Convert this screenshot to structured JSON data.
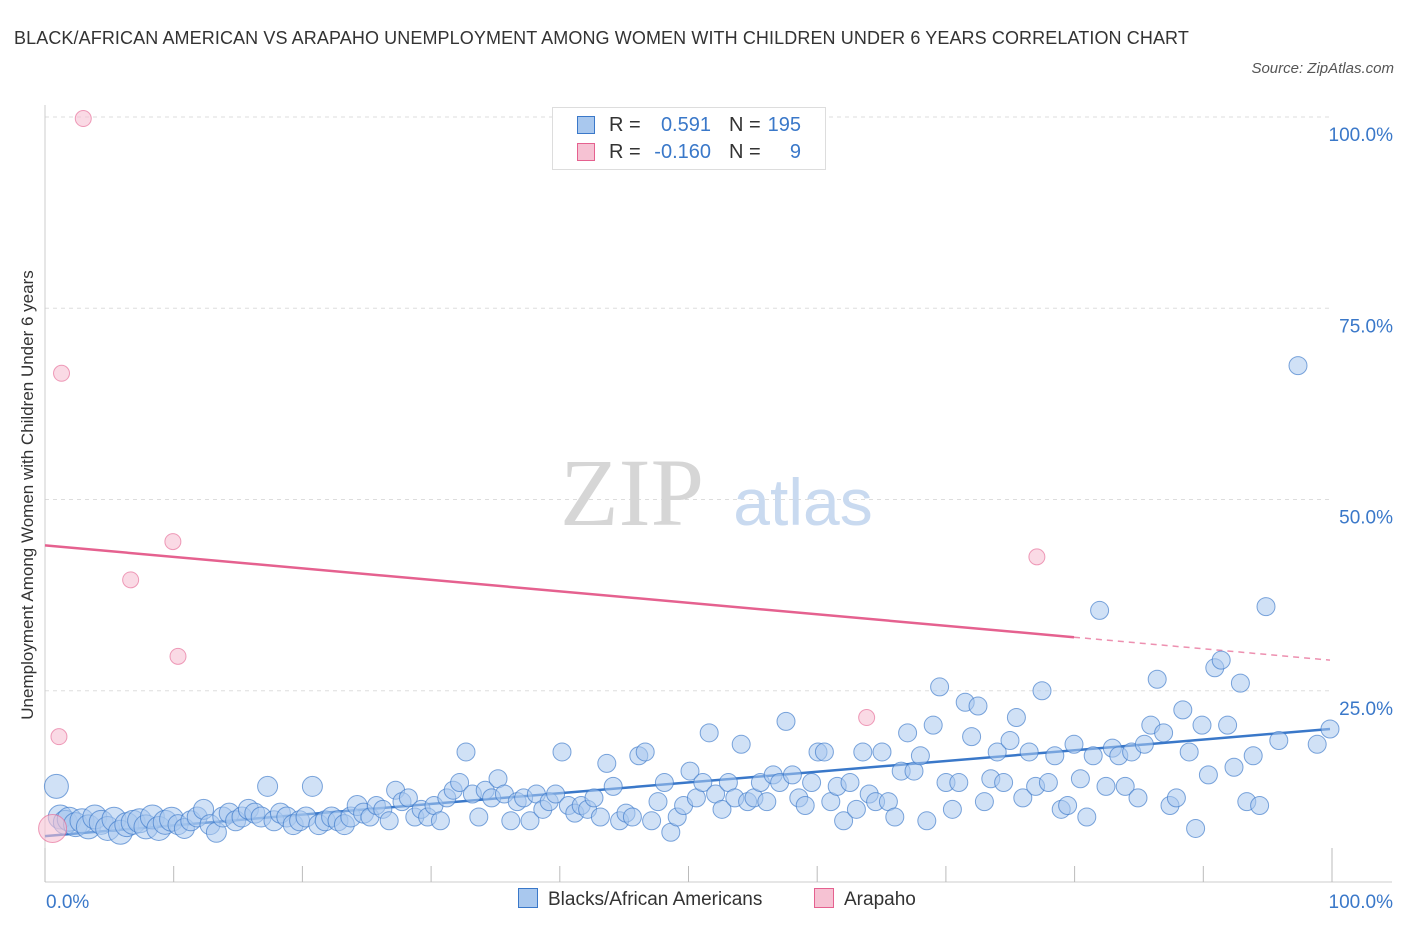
{
  "title": "BLACK/AFRICAN AMERICAN VS ARAPAHO UNEMPLOYMENT AMONG WOMEN WITH CHILDREN UNDER 6 YEARS CORRELATION CHART",
  "source": "Source: ZipAtlas.com",
  "watermark": {
    "zip": "ZIP",
    "atlas": "atlas"
  },
  "stats": {
    "blue": {
      "r_label": "R =",
      "r_value": "0.591",
      "n_label": "N =",
      "n_value": "195"
    },
    "pink": {
      "r_label": "R =",
      "r_value": "-0.160",
      "n_label": "N =",
      "n_value": "9"
    }
  },
  "legend": {
    "blue_label": "Blacks/African Americans",
    "pink_label": "Arapaho"
  },
  "colors": {
    "blue": "#3a78c9",
    "blue_fill": "#a9c8ee",
    "pink": "#e5618f",
    "pink_fill": "#f6c2d3",
    "grid": "#dddddd"
  },
  "chart_data": {
    "type": "scatter",
    "title": "BLACK/AFRICAN AMERICAN VS ARAPAHO UNEMPLOYMENT AMONG WOMEN WITH CHILDREN UNDER 6 YEARS CORRELATION CHART",
    "xlabel": "",
    "ylabel": "Unemployment Among Women with Children Under 6 years",
    "xlim": [
      0,
      100
    ],
    "ylim": [
      0,
      100
    ],
    "x_tick_labels": [
      "0.0%",
      "100.0%"
    ],
    "y_tick_labels": [
      "100.0%",
      "75.0%",
      "50.0%",
      "25.0%"
    ],
    "y_ticks": [
      100,
      75,
      50,
      25
    ],
    "grid": true,
    "series": [
      {
        "name": "Blacks/African Americans",
        "color": "#3a78c9",
        "r": 0.591,
        "n": 195,
        "trend": {
          "x0": 0,
          "y0": 6.0,
          "x1": 100,
          "y1": 20.0
        },
        "points": [
          [
            0.5,
            12.5
          ],
          [
            0.8,
            8.5
          ],
          [
            1.2,
            7.8
          ],
          [
            1.5,
            8.2
          ],
          [
            2.0,
            7.5
          ],
          [
            2.5,
            8.0
          ],
          [
            3.0,
            7.2
          ],
          [
            3.5,
            8.5
          ],
          [
            4.0,
            7.8
          ],
          [
            4.5,
            7.0
          ],
          [
            5.0,
            8.2
          ],
          [
            5.5,
            6.5
          ],
          [
            6.0,
            7.5
          ],
          [
            6.5,
            7.8
          ],
          [
            7.0,
            8.0
          ],
          [
            7.5,
            7.2
          ],
          [
            8.0,
            8.5
          ],
          [
            8.5,
            7.0
          ],
          [
            9.0,
            7.8
          ],
          [
            9.5,
            8.2
          ],
          [
            10.0,
            7.5
          ],
          [
            10.5,
            7.0
          ],
          [
            11.0,
            8.0
          ],
          [
            11.5,
            8.5
          ],
          [
            12.0,
            9.5
          ],
          [
            12.5,
            7.5
          ],
          [
            13.0,
            6.5
          ],
          [
            13.5,
            8.5
          ],
          [
            14.0,
            9.0
          ],
          [
            14.5,
            8.0
          ],
          [
            15.0,
            8.5
          ],
          [
            15.5,
            9.5
          ],
          [
            16.0,
            9.0
          ],
          [
            16.5,
            8.5
          ],
          [
            17.0,
            12.5
          ],
          [
            17.5,
            8.0
          ],
          [
            18.0,
            9.0
          ],
          [
            18.5,
            8.5
          ],
          [
            19.0,
            7.5
          ],
          [
            19.5,
            8.0
          ],
          [
            20.0,
            8.5
          ],
          [
            20.5,
            12.5
          ],
          [
            21.0,
            7.5
          ],
          [
            21.5,
            8.0
          ],
          [
            22.0,
            8.5
          ],
          [
            22.5,
            8.0
          ],
          [
            23.0,
            7.5
          ],
          [
            23.5,
            8.5
          ],
          [
            24.0,
            10.0
          ],
          [
            24.5,
            9.0
          ],
          [
            25.0,
            8.5
          ],
          [
            25.5,
            10.0
          ],
          [
            26.0,
            9.5
          ],
          [
            26.5,
            8.0
          ],
          [
            27.0,
            12.0
          ],
          [
            27.5,
            10.5
          ],
          [
            28.0,
            11.0
          ],
          [
            28.5,
            8.5
          ],
          [
            29.0,
            9.5
          ],
          [
            29.5,
            8.5
          ],
          [
            30.0,
            10.0
          ],
          [
            30.5,
            8.0
          ],
          [
            31.0,
            11.0
          ],
          [
            31.5,
            12.0
          ],
          [
            32.0,
            13.0
          ],
          [
            32.5,
            17.0
          ],
          [
            33.0,
            11.5
          ],
          [
            33.5,
            8.5
          ],
          [
            34.0,
            12.0
          ],
          [
            34.5,
            11.0
          ],
          [
            35.0,
            13.5
          ],
          [
            35.5,
            11.5
          ],
          [
            36.0,
            8.0
          ],
          [
            36.5,
            10.5
          ],
          [
            37.0,
            11.0
          ],
          [
            37.5,
            8.0
          ],
          [
            38.0,
            11.5
          ],
          [
            38.5,
            9.5
          ],
          [
            39.0,
            10.5
          ],
          [
            39.5,
            11.5
          ],
          [
            40.0,
            17.0
          ],
          [
            40.5,
            10.0
          ],
          [
            41.0,
            9.0
          ],
          [
            41.5,
            10.0
          ],
          [
            42.0,
            9.5
          ],
          [
            42.5,
            11.0
          ],
          [
            43.0,
            8.5
          ],
          [
            43.5,
            15.5
          ],
          [
            44.0,
            12.5
          ],
          [
            44.5,
            8.0
          ],
          [
            45.0,
            9.0
          ],
          [
            45.5,
            8.5
          ],
          [
            46.0,
            16.5
          ],
          [
            46.5,
            17.0
          ],
          [
            47.0,
            8.0
          ],
          [
            47.5,
            10.5
          ],
          [
            48.0,
            13.0
          ],
          [
            48.5,
            6.5
          ],
          [
            49.0,
            8.5
          ],
          [
            49.5,
            10.0
          ],
          [
            50.0,
            14.5
          ],
          [
            50.5,
            11.0
          ],
          [
            51.0,
            13.0
          ],
          [
            51.5,
            19.5
          ],
          [
            52.0,
            11.5
          ],
          [
            52.5,
            9.5
          ],
          [
            53.0,
            13.0
          ],
          [
            53.5,
            11.0
          ],
          [
            54.0,
            18.0
          ],
          [
            54.5,
            10.5
          ],
          [
            55.0,
            11.0
          ],
          [
            55.5,
            13.0
          ],
          [
            56.0,
            10.5
          ],
          [
            56.5,
            14.0
          ],
          [
            57.0,
            13.0
          ],
          [
            57.5,
            21.0
          ],
          [
            58.0,
            14.0
          ],
          [
            58.5,
            11.0
          ],
          [
            59.0,
            10.0
          ],
          [
            59.5,
            13.0
          ],
          [
            60.0,
            17.0
          ],
          [
            60.5,
            17.0
          ],
          [
            61.0,
            10.5
          ],
          [
            61.5,
            12.5
          ],
          [
            62.0,
            8.0
          ],
          [
            62.5,
            13.0
          ],
          [
            63.0,
            9.5
          ],
          [
            63.5,
            17.0
          ],
          [
            64.0,
            11.5
          ],
          [
            64.5,
            10.5
          ],
          [
            65.0,
            17.0
          ],
          [
            65.5,
            10.5
          ],
          [
            66.0,
            8.5
          ],
          [
            66.5,
            14.5
          ],
          [
            67.0,
            19.5
          ],
          [
            67.5,
            14.5
          ],
          [
            68.0,
            16.5
          ],
          [
            68.5,
            8.0
          ],
          [
            69.0,
            20.5
          ],
          [
            69.5,
            25.5
          ],
          [
            70.0,
            13.0
          ],
          [
            70.5,
            9.5
          ],
          [
            71.0,
            13.0
          ],
          [
            71.5,
            23.5
          ],
          [
            72.0,
            19.0
          ],
          [
            72.5,
            23.0
          ],
          [
            73.0,
            10.5
          ],
          [
            73.5,
            13.5
          ],
          [
            74.0,
            17.0
          ],
          [
            74.5,
            13.0
          ],
          [
            75.0,
            18.5
          ],
          [
            75.5,
            21.5
          ],
          [
            76.0,
            11.0
          ],
          [
            76.5,
            17.0
          ],
          [
            77.0,
            12.5
          ],
          [
            77.5,
            25.0
          ],
          [
            78.0,
            13.0
          ],
          [
            78.5,
            16.5
          ],
          [
            79.0,
            9.5
          ],
          [
            79.5,
            10.0
          ],
          [
            80.0,
            18.0
          ],
          [
            80.5,
            13.5
          ],
          [
            81.0,
            8.5
          ],
          [
            81.5,
            16.5
          ],
          [
            82.0,
            35.5
          ],
          [
            82.5,
            12.5
          ],
          [
            83.0,
            17.5
          ],
          [
            83.5,
            16.5
          ],
          [
            84.0,
            12.5
          ],
          [
            84.5,
            17.0
          ],
          [
            85.0,
            11.0
          ],
          [
            85.5,
            18.0
          ],
          [
            86.0,
            20.5
          ],
          [
            86.5,
            26.5
          ],
          [
            87.0,
            19.5
          ],
          [
            87.5,
            10.0
          ],
          [
            88.0,
            11.0
          ],
          [
            88.5,
            22.5
          ],
          [
            89.0,
            17.0
          ],
          [
            89.5,
            7.0
          ],
          [
            90.0,
            20.5
          ],
          [
            90.5,
            14.0
          ],
          [
            91.0,
            28.0
          ],
          [
            91.5,
            29.0
          ],
          [
            92.0,
            20.5
          ],
          [
            92.5,
            15.0
          ],
          [
            93.0,
            26.0
          ],
          [
            93.5,
            10.5
          ],
          [
            94.0,
            16.5
          ],
          [
            94.5,
            10.0
          ],
          [
            95.0,
            36.0
          ],
          [
            96.0,
            18.5
          ],
          [
            97.5,
            67.5
          ],
          [
            99.0,
            18.0
          ],
          [
            100.0,
            20.0
          ]
        ]
      },
      {
        "name": "Arapaho",
        "color": "#e5618f",
        "r": -0.16,
        "n": 9,
        "trend": {
          "x0": 0,
          "y0": 44.0,
          "x1": 80,
          "y1": 32.0,
          "dashed_to_x": 100,
          "dashed_to_y": 29.0
        },
        "points": [
          [
            0.2,
            7.0
          ],
          [
            0.7,
            19.0
          ],
          [
            0.9,
            66.5
          ],
          [
            2.6,
            99.8
          ],
          [
            6.3,
            39.5
          ],
          [
            9.6,
            44.5
          ],
          [
            10.0,
            29.5
          ],
          [
            63.8,
            21.5
          ],
          [
            77.1,
            42.5
          ]
        ]
      }
    ]
  }
}
